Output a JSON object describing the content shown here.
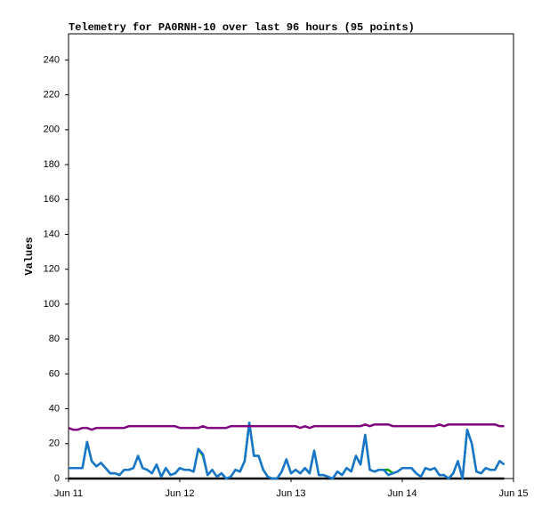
{
  "chart_data": {
    "type": "line",
    "title": "Telemetry for PA0RNH-10 over last 96 hours (95 points)",
    "y_label": "Values",
    "xlim": [
      0,
      96
    ],
    "xticks": [
      {
        "value": 0,
        "label": "Jun 11"
      },
      {
        "value": 24,
        "label": "Jun 12"
      },
      {
        "value": 48,
        "label": "Jun 13"
      },
      {
        "value": 72,
        "label": "Jun 14"
      },
      {
        "value": 96,
        "label": "Jun 15"
      }
    ],
    "ylim": [
      0,
      255
    ],
    "yticks": [
      0,
      20,
      40,
      60,
      80,
      100,
      120,
      140,
      160,
      180,
      200,
      220,
      240
    ],
    "grid": false,
    "series": [
      {
        "color": "#000000",
        "values": [
          0,
          0,
          0,
          0,
          0,
          0,
          0,
          0,
          0,
          0,
          0,
          0,
          0,
          0,
          0,
          0,
          0,
          0,
          0,
          0,
          0,
          0,
          0,
          0,
          0,
          0,
          0,
          0,
          0,
          0,
          0,
          0,
          0,
          0,
          0,
          0,
          0,
          0,
          0,
          0,
          0,
          0,
          0,
          0,
          0,
          0,
          0,
          0,
          0,
          0,
          0,
          0,
          0,
          0,
          0,
          0,
          0,
          0,
          0,
          0,
          0,
          0,
          0,
          0,
          0,
          0,
          0,
          0,
          0,
          0,
          0,
          0,
          0,
          0,
          0,
          0,
          0,
          0,
          0,
          0,
          0,
          0,
          0,
          0,
          0,
          0,
          0,
          0,
          0,
          0,
          0,
          0,
          0,
          0,
          0
        ]
      },
      {
        "color": "#00aa00",
        "values": [
          6,
          6,
          6,
          6,
          21,
          10,
          7,
          9,
          6,
          3,
          3,
          2,
          5,
          5,
          6,
          13,
          6,
          5,
          3,
          8,
          1,
          6,
          2,
          3,
          6,
          5,
          5,
          4,
          17,
          13,
          2,
          5,
          1,
          3,
          0,
          1,
          5,
          4,
          10,
          32,
          13,
          13,
          5,
          1,
          0,
          0,
          4,
          11,
          3,
          5,
          3,
          6,
          3,
          16,
          2,
          2,
          1,
          0,
          4,
          2,
          6,
          4,
          13,
          8,
          25,
          5,
          4,
          5,
          5,
          5,
          3,
          4,
          6,
          6,
          6,
          3,
          1,
          6,
          5,
          6,
          2,
          2,
          0,
          3,
          10,
          0,
          28,
          20,
          4,
          3,
          6,
          5,
          5,
          10,
          8
        ]
      },
      {
        "color": "#1874cd",
        "values": [
          6,
          6,
          6,
          6,
          21,
          10,
          7,
          9,
          6,
          3,
          3,
          2,
          5,
          5,
          6,
          13,
          6,
          5,
          3,
          8,
          1,
          6,
          2,
          3,
          6,
          5,
          5,
          4,
          17,
          14,
          2,
          5,
          1,
          3,
          0,
          1,
          5,
          4,
          10,
          32,
          13,
          13,
          5,
          1,
          0,
          0,
          4,
          11,
          3,
          5,
          3,
          6,
          3,
          16,
          2,
          2,
          1,
          0,
          4,
          2,
          6,
          4,
          13,
          8,
          25,
          5,
          4,
          5,
          5,
          2,
          3,
          4,
          6,
          6,
          6,
          3,
          1,
          6,
          5,
          6,
          2,
          2,
          0,
          3,
          10,
          0,
          28,
          20,
          4,
          3,
          6,
          5,
          5,
          10,
          8
        ]
      },
      {
        "color": "#800080",
        "values": [
          29,
          28,
          28,
          29,
          29,
          28,
          29,
          29,
          29,
          29,
          29,
          29,
          29,
          30,
          30,
          30,
          30,
          30,
          30,
          30,
          30,
          30,
          30,
          30,
          29,
          29,
          29,
          29,
          29,
          30,
          29,
          29,
          29,
          29,
          29,
          30,
          30,
          30,
          30,
          30,
          30,
          30,
          30,
          30,
          30,
          30,
          30,
          30,
          30,
          30,
          29,
          30,
          29,
          30,
          30,
          30,
          30,
          30,
          30,
          30,
          30,
          30,
          30,
          30,
          31,
          30,
          31,
          31,
          31,
          31,
          30,
          30,
          30,
          30,
          30,
          30,
          30,
          30,
          30,
          30,
          31,
          30,
          31,
          31,
          31,
          31,
          31,
          31,
          31,
          31,
          31,
          31,
          31,
          30,
          30
        ]
      }
    ]
  }
}
